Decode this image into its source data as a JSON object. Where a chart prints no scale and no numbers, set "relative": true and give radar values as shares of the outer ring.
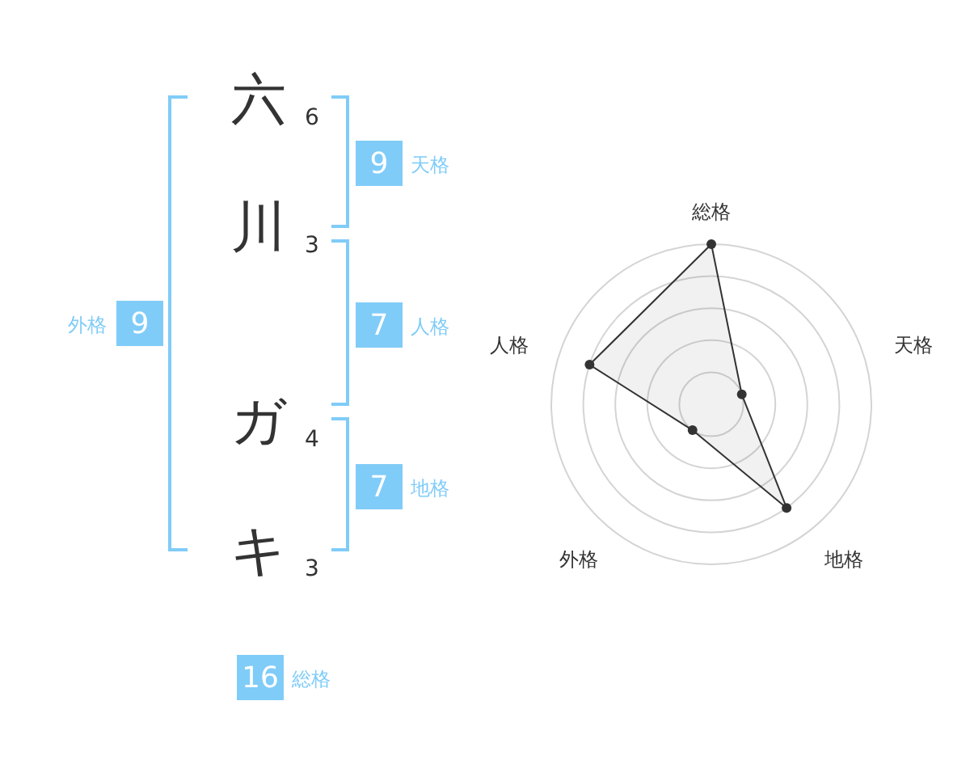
{
  "chart_data": [
    {
      "type": "other",
      "categories": [
        "天格",
        "人格",
        "地格",
        "外格",
        "総格"
      ],
      "values": [
        9,
        7,
        7,
        9,
        16
      ],
      "data_labels": true,
      "color": "#80ccf8",
      "annotations": [
        "六",
        "6",
        "川",
        "3",
        "ガ",
        "4",
        "キ",
        "3"
      ]
    },
    {
      "type": "radar",
      "categories": [
        "総格",
        "天格",
        "地格",
        "外格",
        "人格"
      ],
      "series": [
        {
          "color": "#333333",
          "values": [
            1,
            0.2,
            0.8,
            0.2,
            0.8
          ]
        }
      ],
      "relative": true,
      "grid": true,
      "marker": "circle"
    }
  ]
}
